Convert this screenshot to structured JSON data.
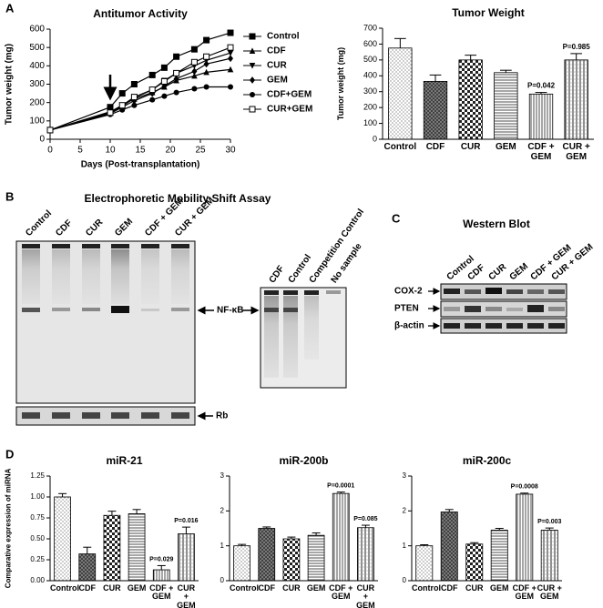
{
  "panel_labels": [
    "A",
    "B",
    "C",
    "D"
  ],
  "blots": {
    "emsa": {
      "title": "Electrophoretic Mobility Shift Assay",
      "lanes": [
        "Control",
        "CDF",
        "CUR",
        "GEM",
        "CDF + GEM",
        "CUR + GEM"
      ],
      "band_label": "NF-κB",
      "loading_label": "Rb"
    },
    "emsa_controls": {
      "lanes": [
        "CDF",
        "Control",
        "Competition Control",
        "No sample"
      ]
    },
    "western": {
      "title": "Western Blot",
      "lanes": [
        "Control",
        "CDF",
        "CUR",
        "GEM",
        "CDF + GEM",
        "CUR + GEM"
      ],
      "rows": [
        "COX-2",
        "PTEN",
        "β-actin"
      ]
    }
  },
  "chart_data": [
    {
      "type": "line",
      "title": "Antitumor Activity",
      "x_label": "Days (Post-transplantation)",
      "y_label": "Tumor weight (mg)",
      "x": [
        0,
        10,
        12,
        14,
        17,
        19,
        21,
        24,
        26,
        30
      ],
      "series": [
        {
          "name": "Control",
          "color": "#000000",
          "marker": "square",
          "values": [
            50,
            175,
            250,
            300,
            350,
            390,
            450,
            490,
            540,
            580
          ]
        },
        {
          "name": "CDF",
          "color": "#000000",
          "marker": "triangle",
          "values": [
            50,
            150,
            185,
            220,
            255,
            285,
            320,
            345,
            365,
            380
          ]
        },
        {
          "name": "CUR",
          "color": "#000000",
          "marker": "triangle-down",
          "values": [
            50,
            145,
            180,
            225,
            270,
            320,
            360,
            400,
            430,
            470
          ]
        },
        {
          "name": "GEM",
          "color": "#000000",
          "marker": "diamond",
          "values": [
            50,
            140,
            175,
            210,
            250,
            290,
            330,
            370,
            410,
            440
          ]
        },
        {
          "name": "CDF+GEM",
          "color": "#000000",
          "marker": "circle",
          "values": [
            50,
            135,
            160,
            185,
            215,
            235,
            255,
            275,
            285,
            285
          ]
        },
        {
          "name": "CUR+GEM",
          "color": "#000000",
          "marker": "open-square",
          "values": [
            50,
            145,
            185,
            230,
            270,
            315,
            360,
            420,
            450,
            500
          ]
        }
      ],
      "xlim": [
        0,
        30
      ],
      "xticks": [
        0,
        5,
        10,
        15,
        20,
        25,
        30
      ],
      "ylim": [
        0,
        600
      ],
      "yticks": [
        0,
        100,
        200,
        300,
        400,
        500,
        600
      ],
      "grid": false
    },
    {
      "type": "bar",
      "title": "Tumor Weight",
      "y_label": "Tumor weight (mg)",
      "categories": [
        "Control",
        "CDF",
        "CUR",
        "GEM",
        "CDF + GEM",
        "CUR + GEM"
      ],
      "values": [
        575,
        365,
        500,
        420,
        285,
        500
      ],
      "errors": [
        60,
        40,
        30,
        15,
        10,
        40
      ],
      "p_values": [
        null,
        null,
        null,
        null,
        "P=0.042",
        "P=0.985"
      ],
      "ylim": [
        0,
        700
      ],
      "yticks": [
        0,
        100,
        200,
        300,
        400,
        500,
        600,
        700
      ],
      "grid": false
    },
    {
      "type": "bar",
      "title": "miR-21",
      "y_label": "Comparative expression of miRNA",
      "categories": [
        "Control",
        "CDF",
        "CUR",
        "GEM",
        "CDF + GEM",
        "CUR + GEM"
      ],
      "values": [
        1.0,
        0.32,
        0.78,
        0.8,
        0.13,
        0.56
      ],
      "errors": [
        0.04,
        0.08,
        0.05,
        0.05,
        0.05,
        0.08
      ],
      "p_values": [
        null,
        null,
        null,
        null,
        "P=0.029",
        "P=0.016"
      ],
      "ylim": [
        0,
        1.25
      ],
      "yticks": [
        {
          "value": 0,
          "label": "0.00"
        },
        {
          "value": 0.25,
          "label": "0.25"
        },
        {
          "value": 0.5,
          "label": "0.50"
        },
        {
          "value": 0.75,
          "label": "0.75"
        },
        {
          "value": 1,
          "label": "1.00"
        },
        {
          "value": 1.25,
          "label": "1.25"
        }
      ],
      "grid": false
    },
    {
      "type": "bar",
      "title": "miR-200b",
      "categories": [
        "Control",
        "CDF",
        "CUR",
        "GEM",
        "CDF + GEM",
        "CUR + GEM"
      ],
      "values": [
        1.0,
        1.5,
        1.2,
        1.3,
        2.5,
        1.52
      ],
      "errors": [
        0.04,
        0.04,
        0.05,
        0.07,
        0.04,
        0.07
      ],
      "p_values": [
        null,
        null,
        null,
        null,
        "P=0.0001",
        "P=0.085"
      ],
      "ylim": [
        0,
        3
      ],
      "yticks": [
        0,
        1,
        2,
        3
      ],
      "grid": false
    },
    {
      "type": "bar",
      "title": "miR-200c",
      "categories": [
        "Control",
        "CDF",
        "CUR",
        "GEM",
        "CDF + GEM",
        "CUR + GEM"
      ],
      "values": [
        1.0,
        1.97,
        1.05,
        1.45,
        2.48,
        1.45
      ],
      "errors": [
        0.03,
        0.07,
        0.04,
        0.05,
        0.03,
        0.06
      ],
      "p_values": [
        null,
        null,
        null,
        null,
        "P=0.0008",
        "P=0.003"
      ],
      "ylim": [
        0,
        3
      ],
      "yticks": [
        0,
        1,
        2,
        3
      ],
      "grid": false
    }
  ]
}
